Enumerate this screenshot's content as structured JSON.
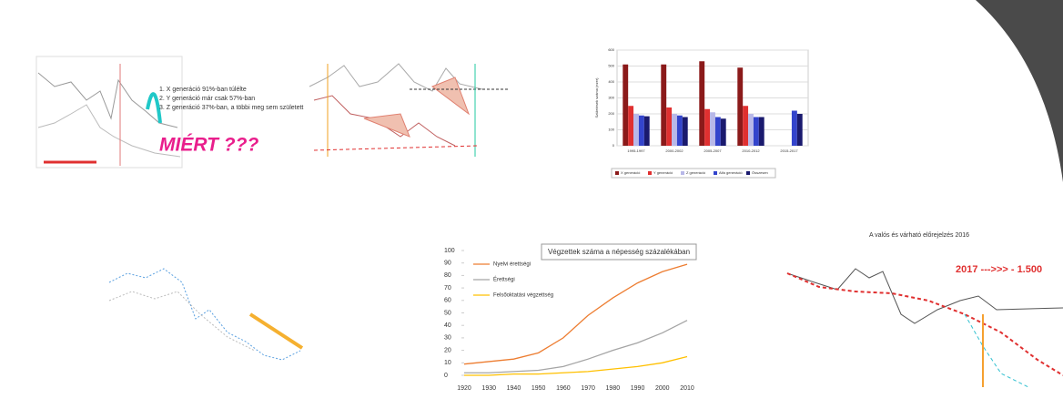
{
  "slide": {
    "generations": [
      "1. X generáció 91%-ban túlélte",
      "2. Y generáció már csak 57%-ban",
      "3. Z generáció 37%-ban, a többi meg sem született"
    ],
    "why": "MIÉRT ???",
    "forecast_title": "A valós és várható előrejelzés 2016",
    "forecast_note": "2017 --->>> - 1.500"
  },
  "chart_data": [
    {
      "type": "bar",
      "ylabel": "Születések száma (ezer)",
      "categories": [
        "1995-1997",
        "2000-2002",
        "2005-2007",
        "2010-2012",
        "2015-2017"
      ],
      "ylim": [
        0,
        600
      ],
      "yticks": [
        0,
        100,
        200,
        300,
        400,
        500,
        600
      ],
      "grid": true,
      "series": [
        {
          "name": "X generáció",
          "color": "#8b1a1a",
          "values": [
            510,
            510,
            530,
            490,
            null
          ]
        },
        {
          "name": "Y generáció",
          "color": "#e03030",
          "values": [
            250,
            240,
            230,
            250,
            null
          ]
        },
        {
          "name": "Z generáció",
          "color": "#b8b8e8",
          "values": [
            200,
            200,
            210,
            200,
            null
          ]
        },
        {
          "name": "Alfa generáció",
          "color": "#3344cc",
          "values": [
            190,
            190,
            180,
            180,
            220
          ]
        },
        {
          "name": "Összesen",
          "color": "#1a1a6e",
          "values": [
            185,
            180,
            170,
            180,
            200
          ]
        }
      ]
    },
    {
      "type": "line",
      "title": "Végzettek száma a népesség százalékában",
      "categories": [
        "1920",
        "1930",
        "1940",
        "1950",
        "1960",
        "1970",
        "1980",
        "1990",
        "2000",
        "2010"
      ],
      "ylim": [
        0,
        100
      ],
      "yticks": [
        0,
        10,
        20,
        30,
        40,
        50,
        60,
        70,
        80,
        90,
        100
      ],
      "series": [
        {
          "name": "Nyelvi érettségi",
          "color": "#ed7d31",
          "values": [
            9,
            11,
            13,
            18,
            30,
            48,
            62,
            74,
            83,
            89
          ]
        },
        {
          "name": "Érettségi",
          "color": "#a5a5a5",
          "values": [
            2,
            2,
            3,
            4,
            7,
            13,
            20,
            26,
            34,
            44
          ]
        },
        {
          "name": "Felsőoktatási végzettség",
          "color": "#ffc000",
          "values": [
            0,
            0,
            1,
            1,
            2,
            3,
            5,
            7,
            10,
            15
          ]
        }
      ]
    }
  ]
}
